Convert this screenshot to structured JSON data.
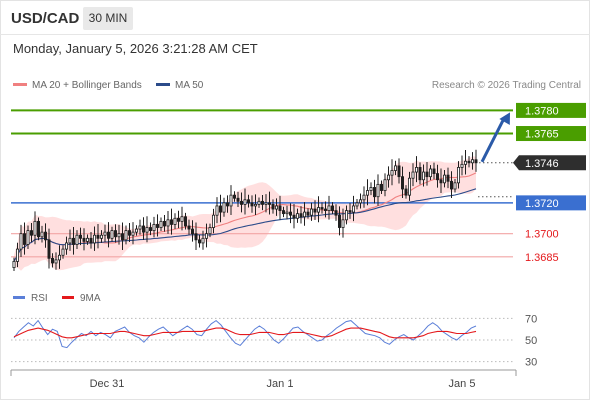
{
  "header": {
    "symbol": "USD/CAD",
    "timeframe": "30 MIN",
    "datetime": "Monday, January 5, 2026 3:21:28 AM CET",
    "credit": "Research © 2026 Trading Central"
  },
  "legend": {
    "ma20_label": "MA 20 + Bollinger Bands",
    "ma50_label": "MA 50",
    "rsi_label": "RSI",
    "ma9_label": "9MA"
  },
  "colors": {
    "candle": "#1f1f1f",
    "candle_up_fill": "#ffffff",
    "bollinger_band": "#ffd9d9",
    "ma20": "#f08080",
    "ma50": "#2b4b8a",
    "resistance": "#4a9e00",
    "pivot": "#3a6fd0",
    "support": "#e4191c",
    "support_line": "#f2a5a5",
    "last_price_badge": "#2e2e2e",
    "rsi": "#5b7fd8",
    "rsi_ma": "#e4191c",
    "arrow": "#2b5aa8"
  },
  "chart_data": [
    {
      "type": "candlestick",
      "title": "USD/CAD",
      "ylim": [
        1.3668,
        1.379
      ],
      "x_tick_labels": [
        "Dec 31",
        "Jan 1",
        "Jan 5"
      ],
      "last_price": 1.3746,
      "levels": [
        {
          "label": "1.3780",
          "value": 1.378,
          "kind": "resistance"
        },
        {
          "label": "1.3765",
          "value": 1.3765,
          "kind": "resistance"
        },
        {
          "label": "1.3720",
          "value": 1.372,
          "kind": "pivot"
        },
        {
          "label": "1.3700",
          "value": 1.37,
          "kind": "support"
        },
        {
          "label": "1.3685",
          "value": 1.3685,
          "kind": "support"
        }
      ],
      "forecast": {
        "from": 1.3746,
        "to": 1.378,
        "direction": "up"
      },
      "close_series": [
        1.3682,
        1.369,
        1.37,
        1.3693,
        1.3702,
        1.3699,
        1.3708,
        1.3698,
        1.3701,
        1.3696,
        1.3684,
        1.3681,
        1.3683,
        1.3686,
        1.369,
        1.3694,
        1.3697,
        1.3693,
        1.3699,
        1.3697,
        1.3695,
        1.3697,
        1.3694,
        1.3699,
        1.3697,
        1.3699,
        1.3701,
        1.3697,
        1.3702,
        1.3698,
        1.37,
        1.3696,
        1.3702,
        1.3699,
        1.3701,
        1.3703,
        1.3705,
        1.3701,
        1.3704,
        1.3702,
        1.3706,
        1.3704,
        1.3708,
        1.3705,
        1.3709,
        1.3706,
        1.371,
        1.3708,
        1.3711,
        1.3705,
        1.3703,
        1.37,
        1.3696,
        1.3694,
        1.3697,
        1.37,
        1.3704,
        1.3712,
        1.3718,
        1.3714,
        1.372,
        1.3718,
        1.3725,
        1.3723,
        1.3721,
        1.3719,
        1.3722,
        1.372,
        1.3718,
        1.3719,
        1.3721,
        1.3719,
        1.372,
        1.3719,
        1.3716,
        1.3718,
        1.3715,
        1.3713,
        1.3714,
        1.3712,
        1.371,
        1.3713,
        1.3711,
        1.3714,
        1.3712,
        1.3716,
        1.3714,
        1.3717,
        1.3716,
        1.3715,
        1.3718,
        1.3715,
        1.3712,
        1.3704,
        1.3709,
        1.3715,
        1.3714,
        1.3718,
        1.372,
        1.3722,
        1.3725,
        1.3728,
        1.373,
        1.3724,
        1.3732,
        1.3728,
        1.3735,
        1.3738,
        1.3741,
        1.3744,
        1.3737,
        1.3729,
        1.3725,
        1.3736,
        1.374,
        1.3743,
        1.3735,
        1.374,
        1.3737,
        1.3742,
        1.3739,
        1.3735,
        1.3733,
        1.3738,
        1.3734,
        1.3729,
        1.3733,
        1.3743,
        1.3745,
        1.3747,
        1.3746,
        1.3748,
        1.3746
      ]
    },
    {
      "type": "line",
      "title": "RSI",
      "ylim": [
        25,
        75
      ],
      "y_tick_labels": [
        "70",
        "50",
        "30"
      ],
      "series": [
        {
          "name": "RSI",
          "values": [
            52,
            58,
            62,
            66,
            63,
            68,
            61,
            55,
            60,
            58,
            44,
            43,
            48,
            52,
            56,
            54,
            58,
            54,
            57,
            55,
            52,
            58,
            60,
            62,
            57,
            54,
            52,
            48,
            53,
            57,
            60,
            62,
            58,
            54,
            57,
            60,
            63,
            60,
            55,
            54,
            60,
            65,
            68,
            64,
            58,
            52,
            47,
            45,
            50,
            55,
            60,
            63,
            60,
            55,
            50,
            47,
            51,
            56,
            61,
            62,
            58,
            55,
            52,
            49,
            50,
            54,
            57,
            61,
            64,
            67,
            68,
            64,
            60,
            56,
            55,
            54,
            52,
            48,
            46,
            50,
            53,
            55,
            52,
            50,
            54,
            58,
            63,
            66,
            63,
            58,
            55,
            52,
            50,
            54,
            57,
            61,
            63
          ]
        },
        {
          "name": "9MA",
          "values": [
            53,
            55,
            57,
            59,
            60,
            61,
            60,
            59,
            57,
            55,
            53,
            52,
            52,
            53,
            54,
            55,
            56,
            56,
            56,
            56,
            56,
            57,
            58,
            58,
            57,
            56,
            55,
            54,
            54,
            55,
            56,
            57,
            57,
            57,
            57,
            58,
            58,
            58,
            58,
            58,
            59,
            60,
            61,
            61,
            60,
            58,
            56,
            55,
            55,
            55,
            56,
            57,
            57,
            57,
            56,
            55,
            55,
            56,
            57,
            57,
            57,
            56,
            55,
            54,
            53,
            53,
            54,
            56,
            58,
            60,
            61,
            61,
            61,
            60,
            59,
            58,
            57,
            55,
            53,
            52,
            52,
            52,
            52,
            52,
            53,
            54,
            56,
            57,
            58,
            58,
            58,
            57,
            56,
            56,
            56,
            57,
            58
          ]
        }
      ]
    }
  ]
}
